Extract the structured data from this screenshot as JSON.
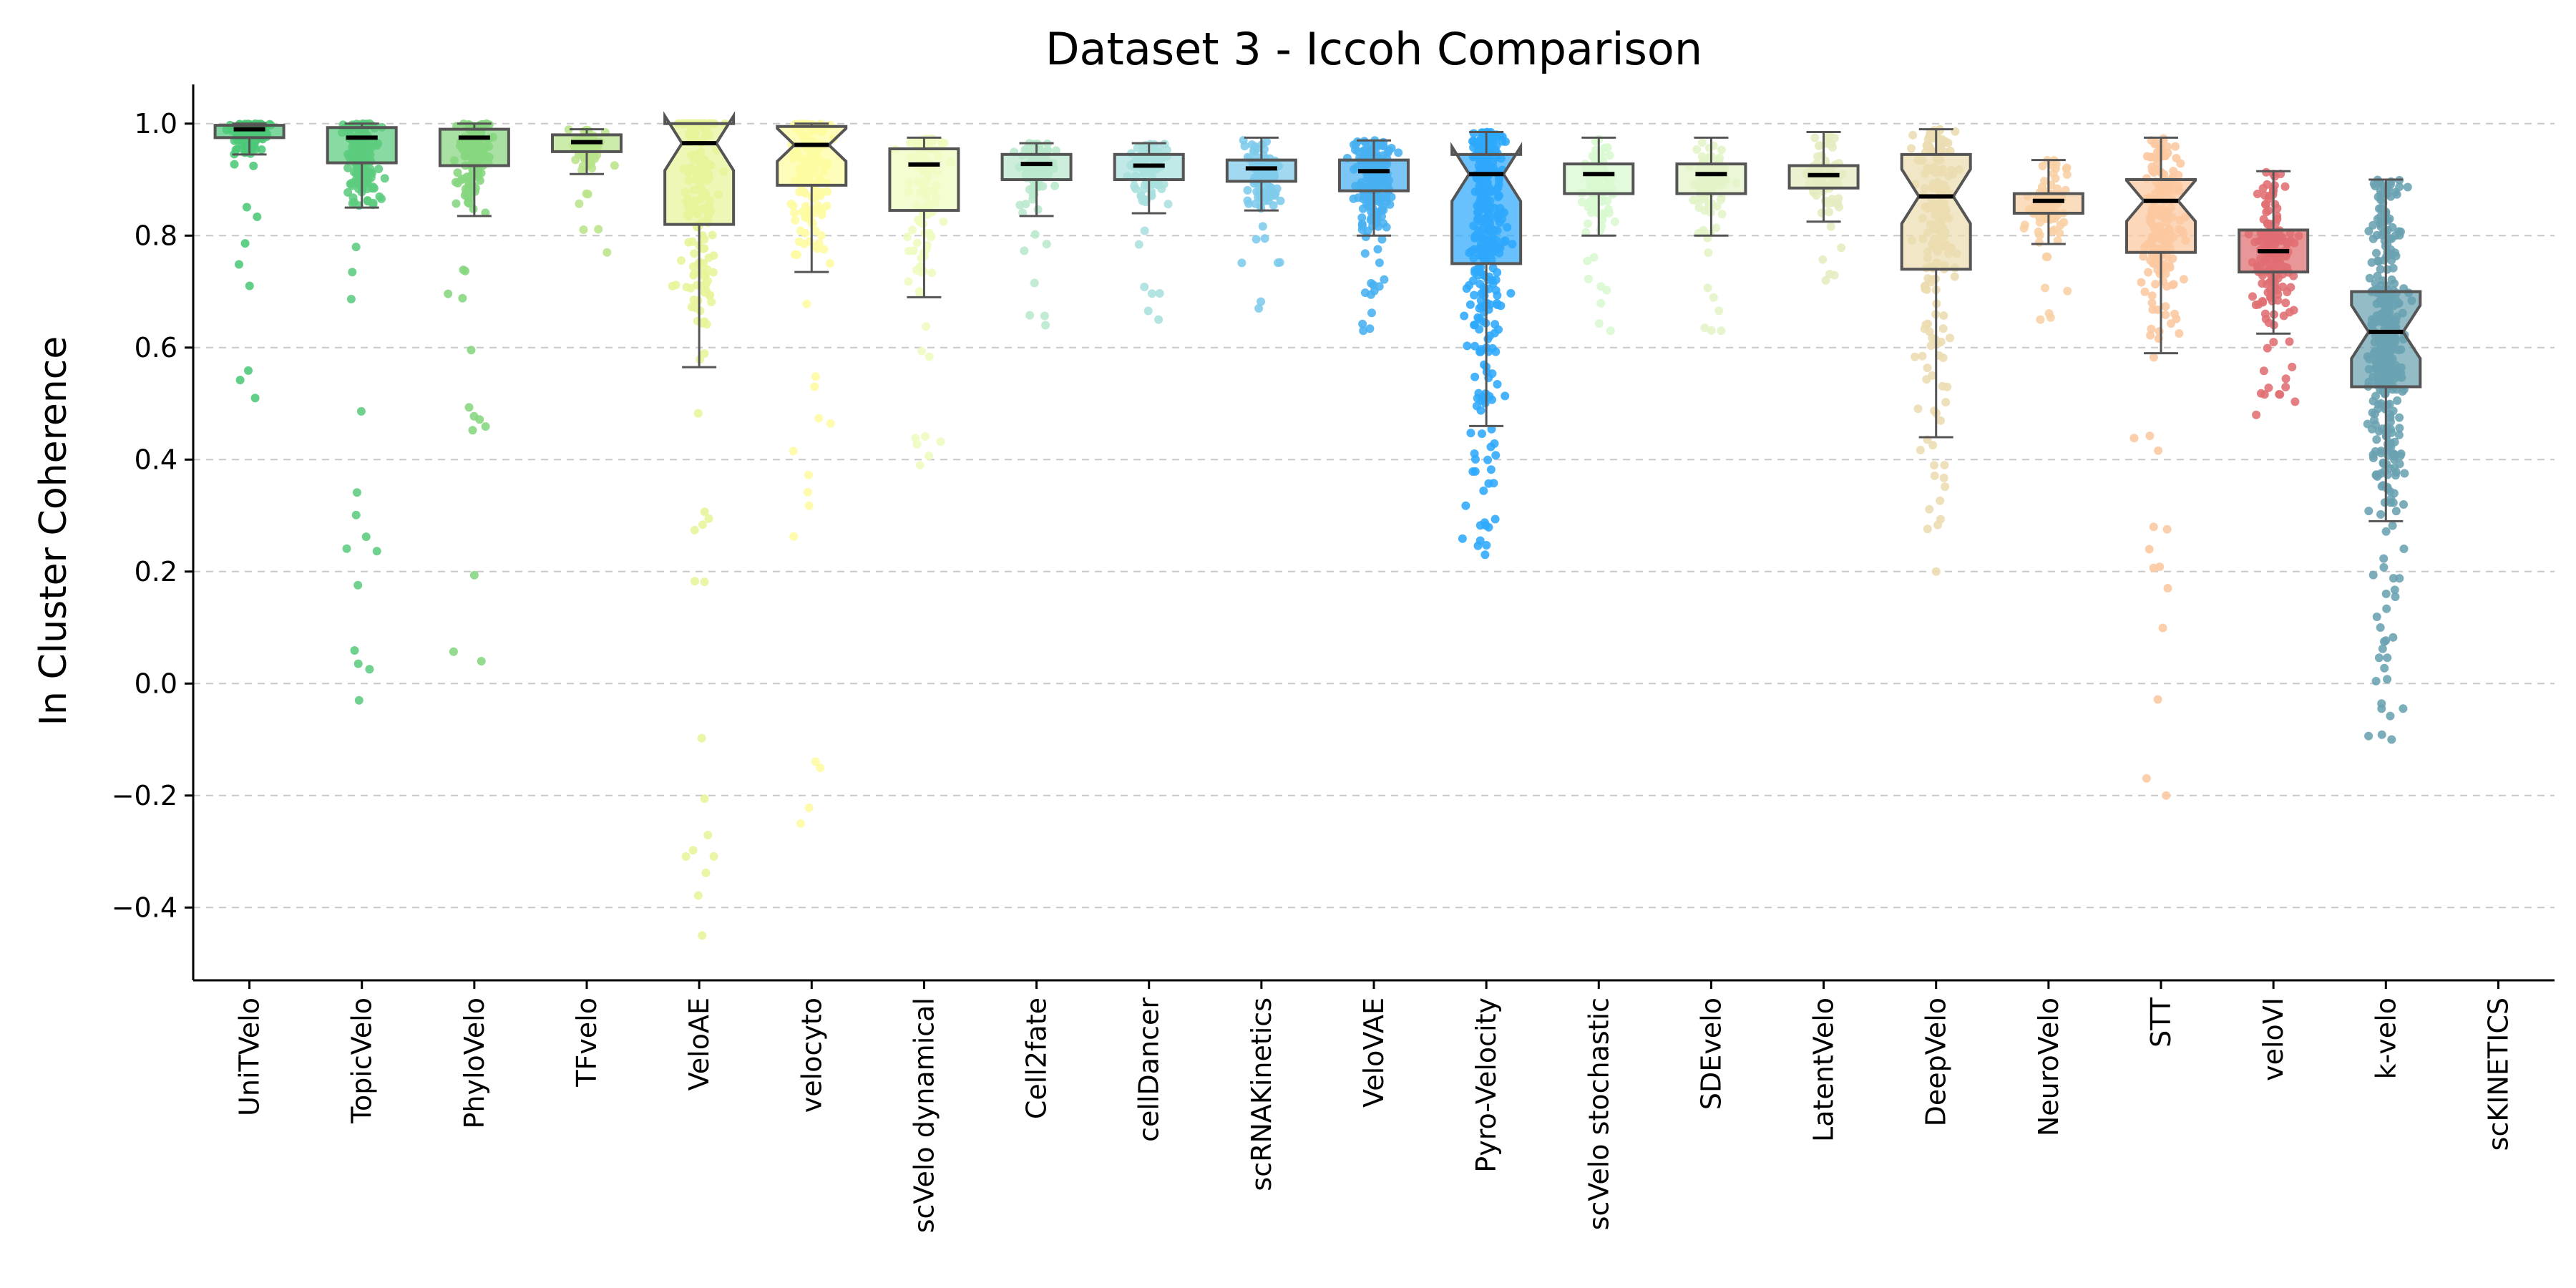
{
  "chart_data": {
    "type": "box",
    "title": "Dataset 3 - Iccoh Comparison",
    "ylabel": "In Cluster Coherence",
    "xlabel": "",
    "ylim": [
      -0.53,
      1.07
    ],
    "yticks": [
      -0.4,
      -0.2,
      0.0,
      0.2,
      0.4,
      0.6,
      0.8,
      1.0
    ],
    "ytick_labels": [
      "−0.4",
      "−0.2",
      "0.0",
      "0.2",
      "0.4",
      "0.6",
      "0.8",
      "1.0"
    ],
    "grid": "y-dashed",
    "categories": [
      "UniTVelo",
      "TopicVelo",
      "PhyloVelo",
      "TFvelo",
      "VeloAE",
      "velocyto",
      "scVelo dynamical",
      "Cell2fate",
      "cellDancer",
      "scRNAKinetics",
      "VeloVAE",
      "Pyro-Velocity",
      "scVelo stochastic",
      "SDEvelo",
      "LatentVelo",
      "DeepVelo",
      "NeuroVelo",
      "STT",
      "veloVI",
      "k-velo",
      "scKINETICS"
    ],
    "colors": [
      "#4cc878",
      "#5ccc7e",
      "#86d67f",
      "#b9e48a",
      "#e8f49a",
      "#fefca0",
      "#eefcc0",
      "#b8e8cc",
      "#a8e0de",
      "#7ecbec",
      "#48b0f0",
      "#2ea8fc",
      "#d8f8d0",
      "#e4f4c8",
      "#e6ecc0",
      "#ecdcb0",
      "#f8d0a4",
      "#fcc8a0",
      "#e06e72",
      "#6aa2b2",
      "#cccccc"
    ],
    "series": [
      {
        "name": "UniTVelo",
        "q1": 0.975,
        "median": 0.99,
        "q3": 0.997,
        "whisker_low": 0.945,
        "whisker_high": 1.0,
        "min": 0.51,
        "max": 1.0,
        "n": 120,
        "notched": false
      },
      {
        "name": "TopicVelo",
        "q1": 0.93,
        "median": 0.975,
        "q3": 0.993,
        "whisker_low": 0.85,
        "whisker_high": 1.0,
        "min": -0.03,
        "max": 1.0,
        "n": 170,
        "notched": false
      },
      {
        "name": "PhyloVelo",
        "q1": 0.925,
        "median": 0.975,
        "q3": 0.99,
        "whisker_low": 0.835,
        "whisker_high": 1.0,
        "min": 0.04,
        "max": 1.0,
        "n": 160,
        "notched": false
      },
      {
        "name": "TFvelo",
        "q1": 0.95,
        "median": 0.967,
        "q3": 0.98,
        "whisker_low": 0.91,
        "whisker_high": 0.99,
        "min": 0.77,
        "max": 0.99,
        "n": 70,
        "notched": false
      },
      {
        "name": "VeloAE",
        "q1": 0.82,
        "median": 0.965,
        "q3": 1.0,
        "whisker_low": 0.565,
        "whisker_high": 1.0,
        "min": -0.45,
        "max": 1.0,
        "n": 200,
        "notched": true
      },
      {
        "name": "velocyto",
        "q1": 0.89,
        "median": 0.962,
        "q3": 0.995,
        "whisker_low": 0.735,
        "whisker_high": 1.0,
        "min": -0.25,
        "max": 1.0,
        "n": 180,
        "notched": true
      },
      {
        "name": "scVelo dynamical",
        "q1": 0.845,
        "median": 0.927,
        "q3": 0.955,
        "whisker_low": 0.69,
        "whisker_high": 0.975,
        "min": 0.39,
        "max": 0.975,
        "n": 110,
        "notched": false
      },
      {
        "name": "Cell2fate",
        "q1": 0.9,
        "median": 0.928,
        "q3": 0.945,
        "whisker_low": 0.835,
        "whisker_high": 0.965,
        "min": 0.64,
        "max": 0.965,
        "n": 90,
        "notched": false
      },
      {
        "name": "cellDancer",
        "q1": 0.9,
        "median": 0.925,
        "q3": 0.945,
        "whisker_low": 0.84,
        "whisker_high": 0.965,
        "min": 0.65,
        "max": 0.965,
        "n": 90,
        "notched": false
      },
      {
        "name": "scRNAKinetics",
        "q1": 0.897,
        "median": 0.92,
        "q3": 0.935,
        "whisker_low": 0.845,
        "whisker_high": 0.975,
        "min": 0.67,
        "max": 0.975,
        "n": 100,
        "notched": false
      },
      {
        "name": "VeloVAE",
        "q1": 0.88,
        "median": 0.915,
        "q3": 0.935,
        "whisker_low": 0.8,
        "whisker_high": 0.97,
        "min": 0.63,
        "max": 0.97,
        "n": 200,
        "notched": false
      },
      {
        "name": "Pyro-Velocity",
        "q1": 0.75,
        "median": 0.91,
        "q3": 0.945,
        "whisker_low": 0.46,
        "whisker_high": 0.985,
        "min": 0.23,
        "max": 0.985,
        "n": 320,
        "notched": true
      },
      {
        "name": "scVelo stochastic",
        "q1": 0.875,
        "median": 0.91,
        "q3": 0.928,
        "whisker_low": 0.8,
        "whisker_high": 0.975,
        "min": 0.63,
        "max": 0.975,
        "n": 100,
        "notched": false
      },
      {
        "name": "SDEvelo",
        "q1": 0.875,
        "median": 0.91,
        "q3": 0.928,
        "whisker_low": 0.8,
        "whisker_high": 0.975,
        "min": 0.63,
        "max": 0.975,
        "n": 100,
        "notched": false
      },
      {
        "name": "LatentVelo",
        "q1": 0.885,
        "median": 0.908,
        "q3": 0.925,
        "whisker_low": 0.825,
        "whisker_high": 0.985,
        "min": 0.72,
        "max": 0.985,
        "n": 80,
        "notched": false
      },
      {
        "name": "DeepVelo",
        "q1": 0.74,
        "median": 0.87,
        "q3": 0.945,
        "whisker_low": 0.44,
        "whisker_high": 0.99,
        "min": 0.2,
        "max": 0.99,
        "n": 180,
        "notched": true
      },
      {
        "name": "NeuroVelo",
        "q1": 0.84,
        "median": 0.862,
        "q3": 0.875,
        "whisker_low": 0.785,
        "whisker_high": 0.935,
        "min": 0.65,
        "max": 0.935,
        "n": 90,
        "notched": false
      },
      {
        "name": "STT",
        "q1": 0.77,
        "median": 0.862,
        "q3": 0.9,
        "whisker_low": 0.59,
        "whisker_high": 0.975,
        "min": -0.2,
        "max": 0.975,
        "n": 180,
        "notched": true
      },
      {
        "name": "veloVI",
        "q1": 0.735,
        "median": 0.772,
        "q3": 0.81,
        "whisker_low": 0.625,
        "whisker_high": 0.915,
        "min": 0.48,
        "max": 0.915,
        "n": 170,
        "notched": false
      },
      {
        "name": "k-velo",
        "q1": 0.53,
        "median": 0.628,
        "q3": 0.7,
        "whisker_low": 0.29,
        "whisker_high": 0.9,
        "min": -0.1,
        "max": 0.9,
        "n": 380,
        "notched": true
      },
      {
        "name": "scKINETICS",
        "n": 0,
        "empty": true
      }
    ]
  }
}
